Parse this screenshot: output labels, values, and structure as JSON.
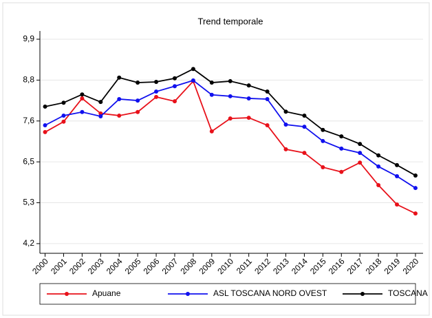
{
  "chart_data": {
    "type": "line",
    "title": "Trend temporale",
    "x": [
      2000,
      2001,
      2002,
      2003,
      2004,
      2005,
      2006,
      2007,
      2008,
      2009,
      2010,
      2011,
      2012,
      2013,
      2014,
      2015,
      2016,
      2017,
      2018,
      2019,
      2020
    ],
    "xlim": [
      1999.72,
      2020.41
    ],
    "xticks": [
      2000,
      2001,
      2002,
      2003,
      2004,
      2005,
      2006,
      2007,
      2008,
      2009,
      2010,
      2011,
      2012,
      2013,
      2014,
      2015,
      2016,
      2017,
      2018,
      2019,
      2020
    ],
    "ylim": [
      3.93,
      10.13
    ],
    "yticks": [
      {
        "value": 4.2,
        "label": "4,2"
      },
      {
        "value": 5.34,
        "label": "5,3"
      },
      {
        "value": 6.48,
        "label": "6,5"
      },
      {
        "value": 7.62,
        "label": "7,6"
      },
      {
        "value": 8.76,
        "label": "8,8"
      },
      {
        "value": 9.9,
        "label": "9,9"
      }
    ],
    "grid": true,
    "legend": "bottom",
    "series": [
      {
        "name": "Apuane",
        "color": "#e8111a",
        "values": [
          7.31,
          7.6,
          8.25,
          7.83,
          7.77,
          7.87,
          8.29,
          8.17,
          8.73,
          7.33,
          7.69,
          7.71,
          7.5,
          6.83,
          6.73,
          6.33,
          6.2,
          6.46,
          5.83,
          5.29,
          5.04
        ]
      },
      {
        "name": "ASL TOSCANA NORD OVEST",
        "color": "#1010ee",
        "values": [
          7.5,
          7.77,
          7.87,
          7.75,
          8.23,
          8.19,
          8.44,
          8.59,
          8.75,
          8.35,
          8.31,
          8.25,
          8.23,
          7.52,
          7.46,
          7.06,
          6.85,
          6.73,
          6.35,
          6.08,
          5.75
        ]
      },
      {
        "name": "TOSCANA",
        "color": "#000000",
        "values": [
          8.02,
          8.13,
          8.36,
          8.15,
          8.83,
          8.69,
          8.71,
          8.81,
          9.07,
          8.69,
          8.73,
          8.61,
          8.44,
          7.88,
          7.77,
          7.37,
          7.19,
          6.98,
          6.66,
          6.39,
          6.1
        ]
      }
    ]
  }
}
